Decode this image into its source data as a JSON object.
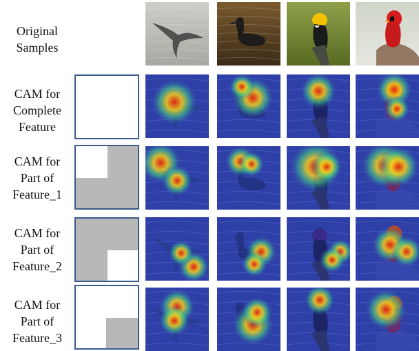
{
  "rows": [
    {
      "label_lines": [
        "Original",
        "Samples"
      ]
    },
    {
      "label_lines": [
        "CAM for",
        "Complete",
        "Feature"
      ]
    },
    {
      "label_lines": [
        "CAM for",
        "Part of",
        "Feature_1"
      ]
    },
    {
      "label_lines": [
        "CAM for",
        "Part of",
        "Feature_2"
      ]
    },
    {
      "label_lines": [
        "CAM for",
        "Part of",
        "Feature_3"
      ]
    }
  ],
  "samples": [
    "albatross-in-flight",
    "swimming-waterbird",
    "yellow-headed-blackbird",
    "northern-cardinal"
  ]
}
